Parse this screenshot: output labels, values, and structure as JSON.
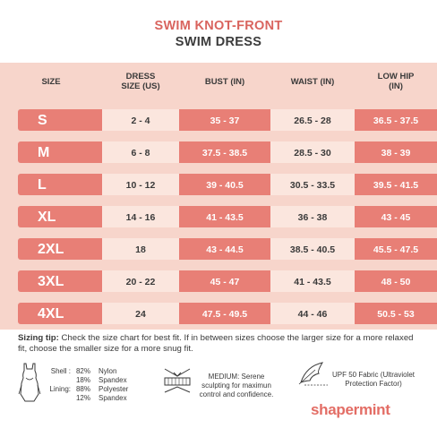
{
  "title": {
    "line1": "SWIM KNOT-FRONT",
    "line2": "SWIM DRESS"
  },
  "table": {
    "headers": [
      "SIZE",
      "DRESS SIZE (US)",
      "BUST (IN)",
      "WAIST (IN)",
      "LOW HIP (IN)"
    ],
    "header_lines": [
      [
        "SIZE"
      ],
      [
        "DRESS",
        "SIZE (US)"
      ],
      [
        "BUST (IN)"
      ],
      [
        "WAIST (IN)"
      ],
      [
        "LOW HIP",
        "(IN)"
      ]
    ],
    "rows": [
      {
        "size": "S",
        "dress": "2 - 4",
        "bust": "35 - 37",
        "waist": "26.5 - 28",
        "hip": "36.5 - 37.5"
      },
      {
        "size": "M",
        "dress": "6 - 8",
        "bust": "37.5 - 38.5",
        "waist": "28.5 - 30",
        "hip": "38 - 39"
      },
      {
        "size": "L",
        "dress": "10 - 12",
        "bust": "39 - 40.5",
        "waist": "30.5 - 33.5",
        "hip": "39.5 - 41.5"
      },
      {
        "size": "XL",
        "dress": "14 - 16",
        "bust": "41 - 43.5",
        "waist": "36 - 38",
        "hip": "43 - 45"
      },
      {
        "size": "2XL",
        "dress": "18",
        "bust": "43 - 44.5",
        "waist": "38.5 - 40.5",
        "hip": "45.5 - 47.5"
      },
      {
        "size": "3XL",
        "dress": "20 - 22",
        "bust": "45 - 47",
        "waist": "41 - 43.5",
        "hip": "48 - 50"
      },
      {
        "size": "4XL",
        "dress": "24",
        "bust": "47.5 - 49.5",
        "waist": "44 - 46",
        "hip": "50.5 - 53"
      }
    ]
  },
  "tip": {
    "label": "Sizing tip:",
    "text": " Check the size chart for best fit. If in between sizes choose the larger size for a more relaxed fit, choose the smaller size for a more snug fit."
  },
  "fabric": {
    "shell_label": "Shell :",
    "shell_pct1": "82%",
    "shell_mat1": "Nylon",
    "shell_pct2": "18%",
    "shell_mat2": "Spandex",
    "lining_label": "Lining:",
    "lining_pct1": "88%",
    "lining_mat1": "Polyester",
    "lining_pct2": "12%",
    "lining_mat2": "Spandex"
  },
  "sculpt": {
    "line1": "MEDIUM: Serene",
    "line2": "sculpting for maximun",
    "line3": "control and confidence."
  },
  "upf": {
    "line1": "UPF 50 Fabric (Ultraviolet",
    "line2": "Protection Factor)"
  },
  "brand": "shapermint",
  "colors": {
    "accent": "#e87f76",
    "title_red": "#d9645e",
    "table_bg": "#f7d5cb",
    "light_cell": "#fbe6de"
  }
}
